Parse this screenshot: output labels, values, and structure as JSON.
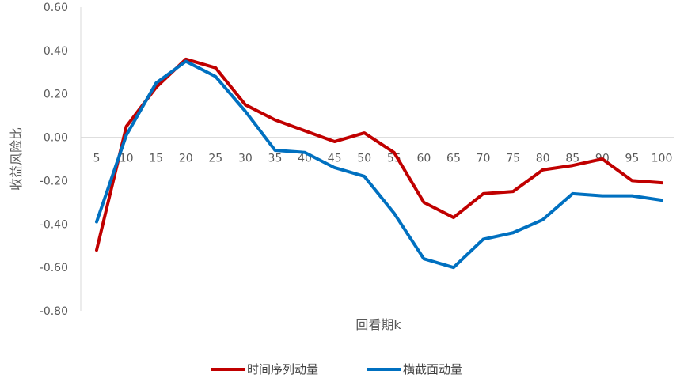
{
  "chart_data": {
    "type": "line",
    "title": "",
    "xlabel": "回看期k",
    "ylabel": "收益风险比",
    "ylim": [
      -0.8,
      0.6
    ],
    "yticks": [
      "0.60",
      "0.40",
      "0.20",
      "0.00",
      "-0.20",
      "-0.40",
      "-0.60",
      "-0.80"
    ],
    "ytick_values": [
      0.6,
      0.4,
      0.2,
      0.0,
      -0.2,
      -0.4,
      -0.6,
      -0.8
    ],
    "categories": [
      "5",
      "10",
      "15",
      "20",
      "25",
      "30",
      "35",
      "40",
      "45",
      "50",
      "55",
      "60",
      "65",
      "70",
      "75",
      "80",
      "85",
      "90",
      "95",
      "100"
    ],
    "grid": false,
    "legend_position": "bottom",
    "series": [
      {
        "name": "时间序列动量",
        "color": "#C00000",
        "values": [
          -0.52,
          0.05,
          0.23,
          0.36,
          0.32,
          0.15,
          0.08,
          0.03,
          -0.02,
          0.02,
          -0.07,
          -0.3,
          -0.37,
          -0.26,
          -0.25,
          -0.15,
          -0.13,
          -0.1,
          -0.2,
          -0.21
        ]
      },
      {
        "name": "横截面动量",
        "color": "#0070C0",
        "values": [
          -0.39,
          0.01,
          0.25,
          0.35,
          0.28,
          0.12,
          -0.06,
          -0.07,
          -0.14,
          -0.18,
          -0.35,
          -0.56,
          -0.6,
          -0.47,
          -0.44,
          -0.38,
          -0.26,
          -0.27,
          -0.27,
          -0.29
        ]
      }
    ]
  }
}
